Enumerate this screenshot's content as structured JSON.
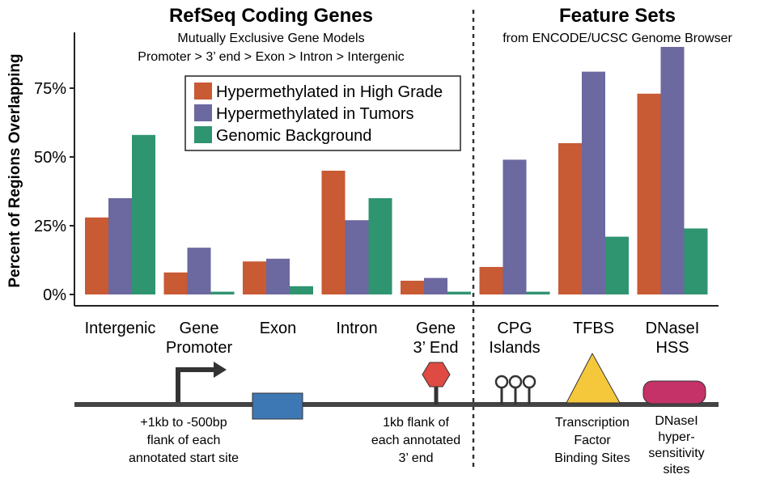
{
  "colors": {
    "high_grade": "#c85a34",
    "tumors": "#6c68a0",
    "background": "#2f9470",
    "axis": "#222222",
    "track": "#444444",
    "exon_box": "#3e78b4",
    "end_hexagon": "#df4a43",
    "tfbs_triangle": "#f5c83c",
    "dnase_pill": "#c43267"
  },
  "left_panel": {
    "title": "RefSeq Coding Genes",
    "subtitle_line1": "Mutually Exclusive Gene Models",
    "subtitle_line2": "Promoter > 3’ end > Exon > Intron > Intergenic"
  },
  "right_panel": {
    "title": "Feature Sets",
    "subtitle": "from ENCODE/UCSC Genome Browser"
  },
  "legend": {
    "position": "top-center",
    "items": [
      {
        "label": "Hypermethylated in High Grade",
        "color_key": "high_grade"
      },
      {
        "label": "Hypermethylated in Tumors",
        "color_key": "tumors"
      },
      {
        "label": "Genomic Background",
        "color_key": "background"
      }
    ]
  },
  "chart_data": {
    "type": "bar",
    "ylabel": "Percent of Regions Overlapping",
    "ylim": [
      0,
      100
    ],
    "yticks": [
      0,
      25,
      50,
      75
    ],
    "ytick_labels": [
      "0%",
      "25%",
      "50%",
      "75%"
    ],
    "grid": false,
    "categories": [
      {
        "line1": "Intergenic",
        "line2": ""
      },
      {
        "line1": "Gene",
        "line2": "Promoter"
      },
      {
        "line1": "Exon",
        "line2": ""
      },
      {
        "line1": "Intron",
        "line2": ""
      },
      {
        "line1": "Gene",
        "line2": "3’ End"
      },
      {
        "line1": "CPG",
        "line2": "Islands"
      },
      {
        "line1": "TFBS",
        "line2": ""
      },
      {
        "line1": "DNaseI",
        "line2": "HSS"
      }
    ],
    "series": [
      {
        "name": "Hypermethylated in High Grade",
        "color_key": "high_grade",
        "values": [
          28,
          8,
          12,
          45,
          5,
          10,
          55,
          73
        ]
      },
      {
        "name": "Hypermethylated in Tumors",
        "color_key": "tumors",
        "values": [
          35,
          17,
          13,
          27,
          6,
          49,
          81,
          90
        ]
      },
      {
        "name": "Genomic Background",
        "color_key": "background",
        "values": [
          58,
          1,
          3,
          35,
          1,
          1,
          21,
          24
        ]
      }
    ]
  },
  "diagram": {
    "promoter_label": [
      "+1kb to -500bp",
      "flank of each",
      "annotated start site"
    ],
    "end_label": [
      "1kb flank of",
      "each annotated",
      "3’ end"
    ],
    "tfbs_label": [
      "Transcription",
      "Factor",
      "Binding Sites"
    ],
    "dnase_label": [
      "DNaseI",
      "hyper-",
      "sensitivity",
      "sites"
    ]
  }
}
